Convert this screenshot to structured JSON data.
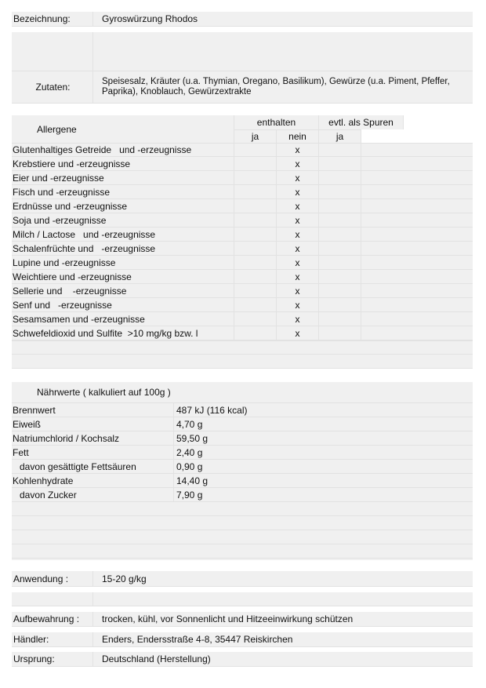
{
  "bezeichnung": {
    "label": "Bezeichnung:",
    "value": "Gyroswürzung Rhodos"
  },
  "zutaten": {
    "label": "Zutaten:",
    "value": "Speisesalz, Kräuter (u.a. Thymian, Oregano, Basilikum), Gewürze (u.a. Piment, Pfeffer, Paprika), Knoblauch, Gewürzextrakte"
  },
  "allergene": {
    "header": "Allergene",
    "enthalten": "enthalten",
    "spuren": "evtl. als Spuren",
    "sub": [
      "ja",
      "nein",
      "ja"
    ],
    "rows": [
      {
        "name": "Glutenhaltiges Getreide   und -erzeugnisse",
        "ja": "",
        "nein": "x",
        "spuren": ""
      },
      {
        "name": "Krebstiere und -erzeugnisse",
        "ja": "",
        "nein": "x",
        "spuren": ""
      },
      {
        "name": "Eier und -erzeugnisse",
        "ja": "",
        "nein": "x",
        "spuren": ""
      },
      {
        "name": "Fisch und -erzeugnisse",
        "ja": "",
        "nein": "x",
        "spuren": ""
      },
      {
        "name": "Erdnüsse und -erzeugnisse",
        "ja": "",
        "nein": "x",
        "spuren": ""
      },
      {
        "name": "Soja und -erzeugnisse",
        "ja": "",
        "nein": "x",
        "spuren": ""
      },
      {
        "name": "Milch / Lactose   und -erzeugnisse",
        "ja": "",
        "nein": "x",
        "spuren": ""
      },
      {
        "name": "Schalenfrüchte und   -erzeugnisse",
        "ja": "",
        "nein": "x",
        "spuren": ""
      },
      {
        "name": "Lupine und -erzeugnisse",
        "ja": "",
        "nein": "x",
        "spuren": ""
      },
      {
        "name": "Weichtiere und -erzeugnisse",
        "ja": "",
        "nein": "x",
        "spuren": ""
      },
      {
        "name": "Sellerie und    -erzeugnisse",
        "ja": "",
        "nein": "x",
        "spuren": ""
      },
      {
        "name": "Senf und   -erzeugnisse",
        "ja": "",
        "nein": "x",
        "spuren": ""
      },
      {
        "name": "Sesamsamen und -erzeugnisse",
        "ja": "",
        "nein": "x",
        "spuren": ""
      },
      {
        "name": "Schwefeldioxid und Sulfite  >10 mg/kg bzw. l",
        "ja": "",
        "nein": "x",
        "spuren": ""
      }
    ]
  },
  "naehrwerte": {
    "header": "Nährwerte   ( kalkuliert auf 100g )",
    "rows": [
      {
        "name": "Brennwert",
        "value": "487 kJ (116 kcal)",
        "indent": false
      },
      {
        "name": "Eiweiß",
        "value": "4,70 g",
        "indent": false
      },
      {
        "name": "Natriumchlorid / Kochsalz",
        "value": "59,50 g",
        "indent": false
      },
      {
        "name": "Fett",
        "value": "2,40 g",
        "indent": false
      },
      {
        "name": "davon gesättigte Fettsäuren",
        "value": "0,90 g",
        "indent": true
      },
      {
        "name": "Kohlenhydrate",
        "value": "14,40 g",
        "indent": false
      },
      {
        "name": "davon Zucker",
        "value": "7,90 g",
        "indent": true
      }
    ]
  },
  "anwendung": {
    "label": "Anwendung :",
    "value": "15-20 g/kg"
  },
  "aufbewahrung": {
    "label": "Aufbewahrung :",
    "value": "trocken, kühl, vor Sonnenlicht und Hitzeeinwirkung schützen"
  },
  "haendler": {
    "label": "Händler:",
    "value": "Enders, Endersstraße 4-8, 35447 Reiskirchen"
  },
  "ursprung": {
    "label": "Ursprung:",
    "value": "Deutschland (Herstellung)"
  }
}
